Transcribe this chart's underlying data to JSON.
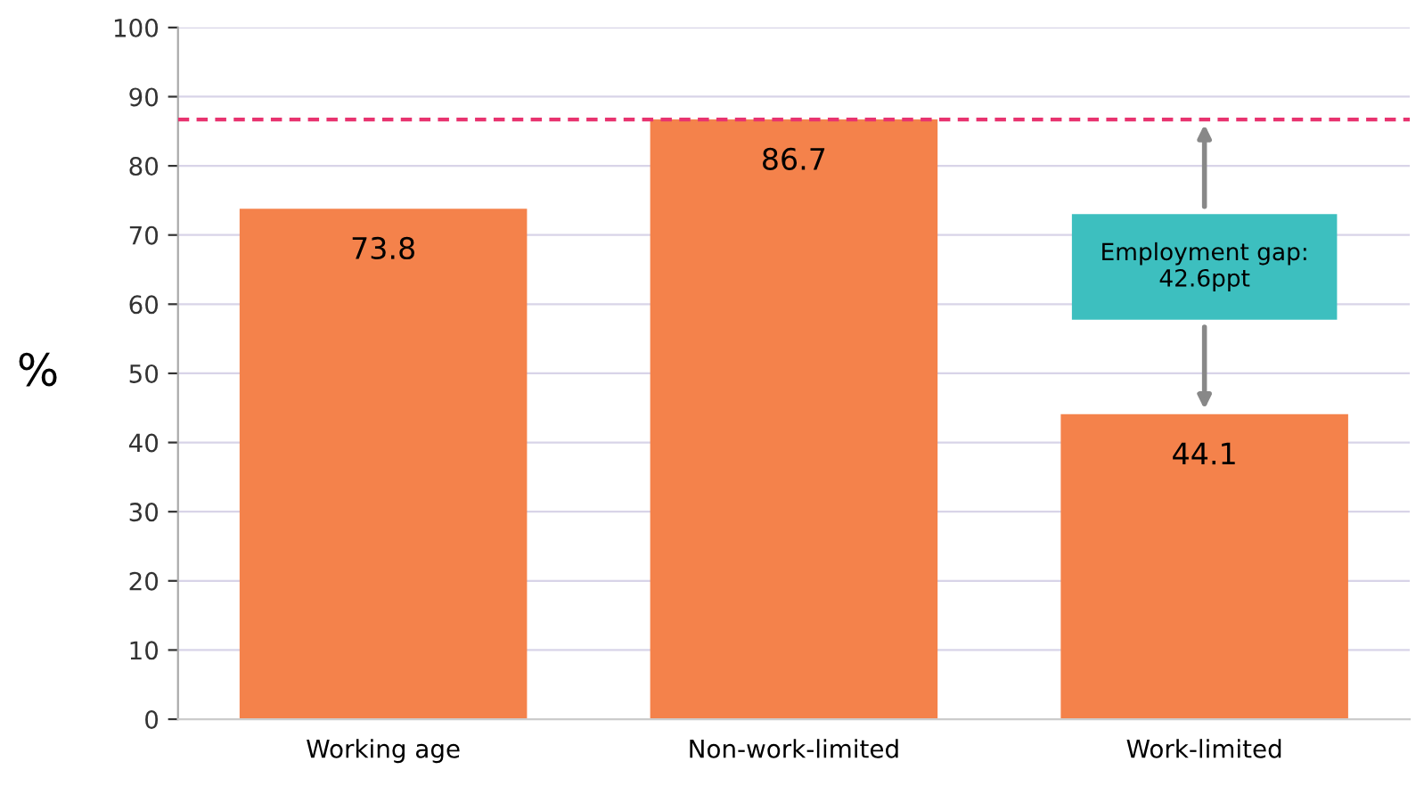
{
  "chart_data": {
    "type": "bar",
    "ylabel": "%",
    "categories": [
      "Working age",
      "Non-work-limited",
      "Work-limited"
    ],
    "values": [
      73.8,
      86.7,
      44.1
    ],
    "color": "#f4824b",
    "ylim": [
      0,
      100
    ],
    "yticks": [
      0,
      10,
      20,
      30,
      40,
      50,
      60,
      70,
      80,
      90,
      100
    ],
    "grid": "y",
    "data_labels": true,
    "ref_lines": [
      {
        "axis": "y",
        "value": 86.7,
        "color": "#e8336f",
        "line_style": "dashed"
      }
    ],
    "annotations": [
      "Employment gap:\n42.6ppt"
    ]
  }
}
